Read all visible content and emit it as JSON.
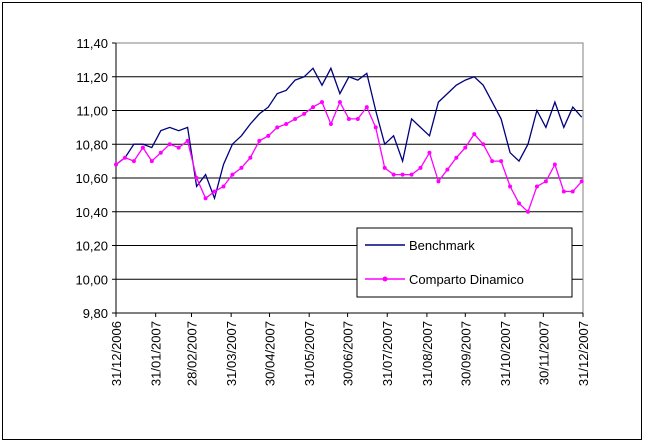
{
  "chart_data": {
    "type": "line",
    "x": [
      "31/12/2006",
      "07/01/2007",
      "14/01/2007",
      "21/01/2007",
      "28/01/2007",
      "04/02/2007",
      "11/02/2007",
      "18/02/2007",
      "25/02/2007",
      "04/03/2007",
      "11/03/2007",
      "18/03/2007",
      "25/03/2007",
      "01/04/2007",
      "08/04/2007",
      "15/04/2007",
      "22/04/2007",
      "29/04/2007",
      "06/05/2007",
      "13/05/2007",
      "20/05/2007",
      "27/05/2007",
      "03/06/2007",
      "10/06/2007",
      "17/06/2007",
      "24/06/2007",
      "01/07/2007",
      "08/07/2007",
      "15/07/2007",
      "22/07/2007",
      "29/07/2007",
      "05/08/2007",
      "12/08/2007",
      "19/08/2007",
      "26/08/2007",
      "02/09/2007",
      "09/09/2007",
      "16/09/2007",
      "23/09/2007",
      "30/09/2007",
      "07/10/2007",
      "14/10/2007",
      "21/10/2007",
      "28/10/2007",
      "04/11/2007",
      "11/11/2007",
      "18/11/2007",
      "25/11/2007",
      "02/12/2007",
      "09/12/2007",
      "16/12/2007",
      "23/12/2007",
      "30/12/2007"
    ],
    "series": [
      {
        "name": "Benchmark",
        "color": "#000080",
        "values": [
          10.68,
          10.72,
          10.8,
          10.8,
          10.78,
          10.88,
          10.9,
          10.88,
          10.9,
          10.55,
          10.62,
          10.48,
          10.68,
          10.8,
          10.85,
          10.92,
          10.98,
          11.02,
          11.1,
          11.12,
          11.18,
          11.2,
          11.25,
          11.15,
          11.25,
          11.1,
          11.2,
          11.18,
          11.22,
          11.0,
          10.8,
          10.85,
          10.7,
          10.95,
          10.9,
          10.85,
          11.05,
          11.1,
          11.15,
          11.18,
          11.2,
          11.15,
          11.05,
          10.95,
          10.75,
          10.7,
          10.8,
          11.0,
          10.9,
          11.05,
          10.9,
          11.02,
          10.96
        ]
      },
      {
        "name": "Comparto Dinamico",
        "color": "#ff00ff",
        "values": [
          10.68,
          10.72,
          10.7,
          10.78,
          10.7,
          10.75,
          10.8,
          10.78,
          10.82,
          10.6,
          10.48,
          10.52,
          10.55,
          10.62,
          10.66,
          10.72,
          10.82,
          10.85,
          10.9,
          10.92,
          10.95,
          10.98,
          11.02,
          11.05,
          10.92,
          11.05,
          10.95,
          10.95,
          11.02,
          10.9,
          10.66,
          10.62,
          10.62,
          10.62,
          10.66,
          10.75,
          10.58,
          10.65,
          10.72,
          10.78,
          10.86,
          10.8,
          10.7,
          10.7,
          10.55,
          10.45,
          10.4,
          10.55,
          10.58,
          10.68,
          10.52,
          10.52,
          10.58
        ]
      }
    ],
    "xlim": [
      "31/12/2006",
      "31/12/2007"
    ],
    "xticks": [
      "31/12/2006",
      "31/01/2007",
      "28/02/2007",
      "31/03/2007",
      "30/04/2007",
      "31/05/2007",
      "30/06/2007",
      "31/07/2007",
      "31/08/2007",
      "30/09/2007",
      "31/10/2007",
      "30/11/2007",
      "31/12/2007"
    ],
    "ylim": [
      9.8,
      11.4
    ],
    "yticks": [
      {
        "value": 9.8,
        "label": "9,80"
      },
      {
        "value": 10.0,
        "label": "10,00"
      },
      {
        "value": 10.2,
        "label": "10,20"
      },
      {
        "value": 10.4,
        "label": "10,40"
      },
      {
        "value": 10.6,
        "label": "10,60"
      },
      {
        "value": 10.8,
        "label": "10,80"
      },
      {
        "value": 11.0,
        "label": "11,00"
      },
      {
        "value": 11.2,
        "label": "11,20"
      },
      {
        "value": 11.4,
        "label": "11,40"
      }
    ],
    "grid": true,
    "legend": "lower right"
  }
}
